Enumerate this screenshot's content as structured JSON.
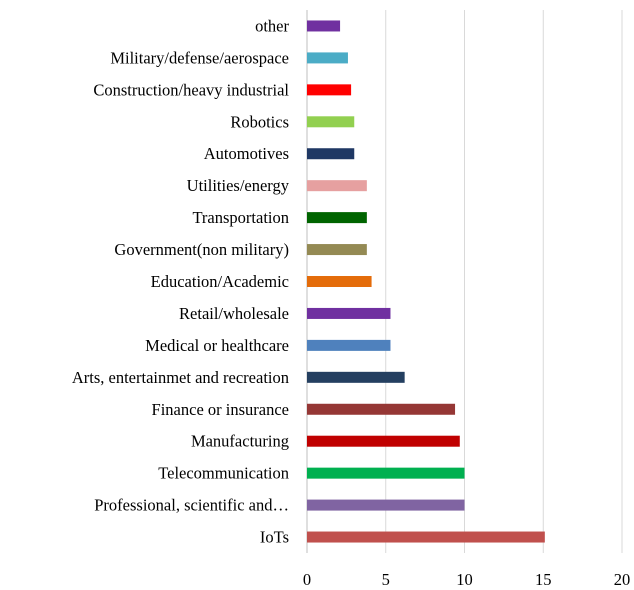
{
  "chart_data": {
    "type": "bar",
    "orientation": "horizontal",
    "categories": [
      "IoTs",
      "Professional, scientific and…",
      "Telecommunication",
      "Manufacturing",
      "Finance or insurance",
      "Arts, entertainmet and recreation",
      "Medical or healthcare",
      "Retail/wholesale",
      "Education/Academic",
      "Government(non military)",
      "Transportation",
      "Utilities/energy",
      "Automotives",
      "Robotics",
      "Construction/heavy industrial",
      "Military/defense/aerospace",
      "other"
    ],
    "values": [
      15.1,
      10.0,
      10.0,
      9.7,
      9.4,
      6.2,
      5.3,
      5.3,
      4.1,
      3.8,
      3.8,
      3.8,
      3.0,
      3.0,
      2.8,
      2.6,
      2.1
    ],
    "colors": [
      "#c0504d",
      "#8064a2",
      "#00b050",
      "#c00000",
      "#953735",
      "#243f60",
      "#4f81bd",
      "#7030a0",
      "#e46c0a",
      "#948a54",
      "#006400",
      "#e6a0a0",
      "#1f3864",
      "#92d050",
      "#ff0000",
      "#4bacc6",
      "#7030a0"
    ],
    "xticks": [
      0,
      5,
      10,
      15,
      20
    ],
    "xlim": [
      0,
      20
    ],
    "grid": true,
    "title": "",
    "xlabel": "",
    "ylabel": ""
  }
}
